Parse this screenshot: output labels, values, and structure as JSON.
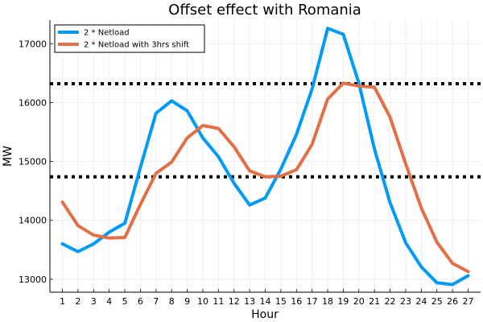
{
  "chart_data": {
    "type": "line",
    "title": "Offset effect with Romania",
    "xlabel": "Hour",
    "ylabel": "MW",
    "xlim": [
      0.2,
      27.8
    ],
    "ylim": [
      12780,
      17400
    ],
    "x_ticks": [
      1,
      2,
      3,
      4,
      5,
      6,
      7,
      8,
      9,
      10,
      11,
      12,
      13,
      14,
      15,
      16,
      17,
      18,
      19,
      20,
      21,
      22,
      23,
      24,
      25,
      26,
      27
    ],
    "y_ticks": [
      13000,
      14000,
      15000,
      16000,
      17000
    ],
    "grid": true,
    "legend_position": "top-left",
    "x": [
      1,
      2,
      3,
      4,
      5,
      6,
      7,
      8,
      9,
      10,
      11,
      12,
      13,
      14,
      15,
      16,
      17,
      18,
      19,
      20,
      21,
      22,
      23,
      24,
      25,
      26,
      27
    ],
    "series": [
      {
        "name": "2 * Netload",
        "color": "#009af9",
        "values": [
          13600,
          13470,
          13600,
          13800,
          13950,
          14900,
          15820,
          16030,
          15860,
          15400,
          15080,
          14630,
          14260,
          14380,
          14870,
          15460,
          16230,
          17260,
          17160,
          16330,
          15210,
          14300,
          13620,
          13210,
          12940,
          12910,
          13060
        ]
      },
      {
        "name": "2 * Netload with 3hrs shift",
        "color": "#e26f46",
        "values": [
          14310,
          13910,
          13750,
          13700,
          13710,
          14270,
          14800,
          14990,
          15400,
          15610,
          15560,
          15250,
          14840,
          14740,
          14750,
          14860,
          15290,
          16060,
          16330,
          16280,
          16260,
          15750,
          14960,
          14210,
          13630,
          13270,
          13130
        ]
      }
    ],
    "hlines": [
      {
        "y": 16320,
        "color": "#000000",
        "style": "dotted"
      },
      {
        "y": 14740,
        "color": "#000000",
        "style": "dotted"
      }
    ]
  }
}
